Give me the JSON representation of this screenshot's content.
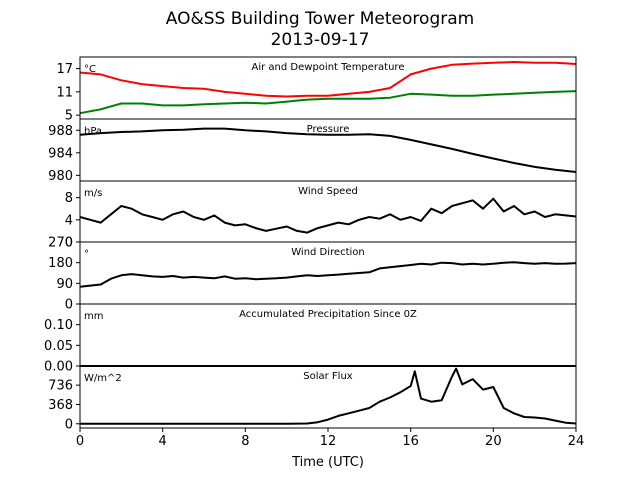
{
  "chart_data": {
    "type": "line",
    "title": "AO&SS Building Tower Meteorogram",
    "subtitle": "2013-09-17",
    "xlabel": "Time (UTC)",
    "xlim": [
      0,
      24
    ],
    "x_ticks": [
      "0",
      "4",
      "8",
      "12",
      "16",
      "20",
      "24"
    ],
    "legend": "none",
    "grid": false,
    "panels": [
      {
        "id": "temperature",
        "title": "Air and Dewpoint Temperature",
        "unit": "°C",
        "ylim": [
          4,
          20
        ],
        "y_ticks": [
          5,
          11,
          17
        ],
        "series": [
          {
            "color": "#ff0000",
            "x": [
              0,
              1,
              2,
              3,
              4,
              5,
              6,
              7,
              8,
              9,
              10,
              11,
              12,
              13,
              14,
              15,
              16,
              17,
              18,
              19,
              20,
              21,
              22,
              23,
              24
            ],
            "values": [
              16,
              15.5,
              14,
              13,
              12.5,
              12,
              11.8,
              11,
              10.5,
              10,
              9.8,
              10,
              10,
              10.5,
              11,
              12,
              15.5,
              17,
              18,
              18.3,
              18.5,
              18.7,
              18.5,
              18.5,
              18.2
            ]
          },
          {
            "color": "#008000",
            "x": [
              0,
              1,
              2,
              3,
              4,
              5,
              6,
              7,
              8,
              9,
              10,
              11,
              12,
              13,
              14,
              15,
              16,
              17,
              18,
              19,
              20,
              21,
              22,
              23,
              24
            ],
            "values": [
              5.5,
              6.5,
              8,
              8,
              7.5,
              7.5,
              7.8,
              8,
              8.2,
              8,
              8.5,
              9,
              9.2,
              9.2,
              9.2,
              9.5,
              10.5,
              10.3,
              10,
              10,
              10.3,
              10.5,
              10.8,
              11,
              11.2
            ]
          }
        ]
      },
      {
        "id": "pressure",
        "title": "Pressure",
        "unit": "hPa",
        "ylim": [
          979,
          990
        ],
        "y_ticks": [
          980,
          984,
          988
        ],
        "series": [
          {
            "color": "#000000",
            "x": [
              0,
              1,
              2,
              3,
              4,
              5,
              6,
              7,
              8,
              9,
              10,
              11,
              12,
              13,
              14,
              15,
              16,
              17,
              18,
              19,
              20,
              21,
              22,
              23,
              24
            ],
            "values": [
              987.2,
              987.5,
              987.7,
              987.8,
              988,
              988.1,
              988.3,
              988.3,
              988,
              987.8,
              987.5,
              987.3,
              987.2,
              987.2,
              987.3,
              987,
              986.3,
              985.5,
              984.7,
              983.8,
              983,
              982.2,
              981.5,
              981,
              980.6
            ]
          }
        ]
      },
      {
        "id": "wind-speed",
        "title": "Wind Speed",
        "unit": "m/s",
        "ylim": [
          0,
          11
        ],
        "y_ticks": [
          0,
          4,
          8
        ],
        "series": [
          {
            "color": "#000000",
            "x": [
              0,
              0.5,
              1,
              1.5,
              2,
              2.5,
              3,
              3.5,
              4,
              4.5,
              5,
              5.5,
              6,
              6.5,
              7,
              7.5,
              8,
              8.5,
              9,
              9.5,
              10,
              10.5,
              11,
              11.5,
              12,
              12.5,
              13,
              13.5,
              14,
              14.5,
              15,
              15.5,
              16,
              16.5,
              17,
              17.5,
              18,
              18.5,
              19,
              19.5,
              20,
              20.5,
              21,
              21.5,
              22,
              22.5,
              23,
              23.5,
              24
            ],
            "values": [
              4.5,
              4,
              3.5,
              5,
              6.5,
              6,
              5,
              4.5,
              4,
              5,
              5.5,
              4.5,
              4,
              4.8,
              3.5,
              3,
              3.2,
              2.5,
              2,
              2.4,
              2.8,
              2,
              1.7,
              2.5,
              3,
              3.5,
              3.2,
              4,
              4.5,
              4.2,
              5,
              4,
              4.5,
              3.8,
              6,
              5.2,
              6.5,
              7,
              7.5,
              6,
              7.8,
              5.5,
              6.5,
              5,
              5.5,
              4.5,
              5,
              4.8,
              4.6
            ]
          }
        ]
      },
      {
        "id": "wind-direction",
        "title": "Wind Direction",
        "unit": "°",
        "ylim": [
          0,
          270
        ],
        "y_ticks": [
          0,
          90,
          180,
          270
        ],
        "series": [
          {
            "color": "#000000",
            "x": [
              0,
              0.5,
              1,
              1.5,
              2,
              2.5,
              3,
              3.5,
              4,
              4.5,
              5,
              5.5,
              6,
              6.5,
              7,
              7.5,
              8,
              8.5,
              9,
              9.5,
              10,
              10.5,
              11,
              11.5,
              12,
              12.5,
              13,
              13.5,
              14,
              14.5,
              15,
              15.5,
              16,
              16.5,
              17,
              17.5,
              18,
              18.5,
              19,
              19.5,
              20,
              20.5,
              21,
              21.5,
              22,
              22.5,
              23,
              23.5,
              24
            ],
            "values": [
              75,
              80,
              85,
              110,
              125,
              130,
              125,
              120,
              118,
              122,
              115,
              118,
              115,
              112,
              120,
              110,
              112,
              108,
              110,
              112,
              115,
              120,
              125,
              122,
              125,
              128,
              132,
              135,
              138,
              155,
              160,
              165,
              170,
              175,
              172,
              180,
              178,
              172,
              175,
              172,
              175,
              180,
              182,
              178,
              175,
              178,
              175,
              176,
              178
            ]
          }
        ]
      },
      {
        "id": "precipitation",
        "title": "Accumulated Precipitation Since 0Z",
        "unit": "mm",
        "ylim": [
          0,
          0.15
        ],
        "y_ticks": [
          "0.00",
          "0.05",
          "0.10"
        ],
        "series": [
          {
            "color": "#000000",
            "x": [
              0,
              24
            ],
            "values": [
              0,
              0
            ]
          }
        ]
      },
      {
        "id": "solar-flux",
        "title": "Solar Flux",
        "unit": "W/m^2",
        "ylim": [
          -80,
          1100
        ],
        "y_ticks": [
          0,
          368,
          736
        ],
        "series": [
          {
            "color": "#000000",
            "x": [
              0,
              1,
              2,
              3,
              4,
              5,
              6,
              7,
              8,
              9,
              10,
              11,
              11.5,
              12,
              12.5,
              13,
              13.5,
              14,
              14.5,
              15,
              15.5,
              16,
              16.2,
              16.5,
              17,
              17.5,
              18,
              18.2,
              18.5,
              19,
              19.5,
              20,
              20.5,
              21,
              21.5,
              22,
              22.5,
              23,
              23.5,
              24
            ],
            "values": [
              0,
              0,
              0,
              0,
              0,
              0,
              0,
              0,
              0,
              0,
              0,
              5,
              30,
              80,
              150,
              200,
              250,
              300,
              420,
              500,
              600,
              720,
              1000,
              480,
              420,
              450,
              900,
              1050,
              750,
              850,
              650,
              700,
              300,
              200,
              130,
              120,
              100,
              60,
              20,
              5
            ]
          }
        ]
      }
    ]
  }
}
